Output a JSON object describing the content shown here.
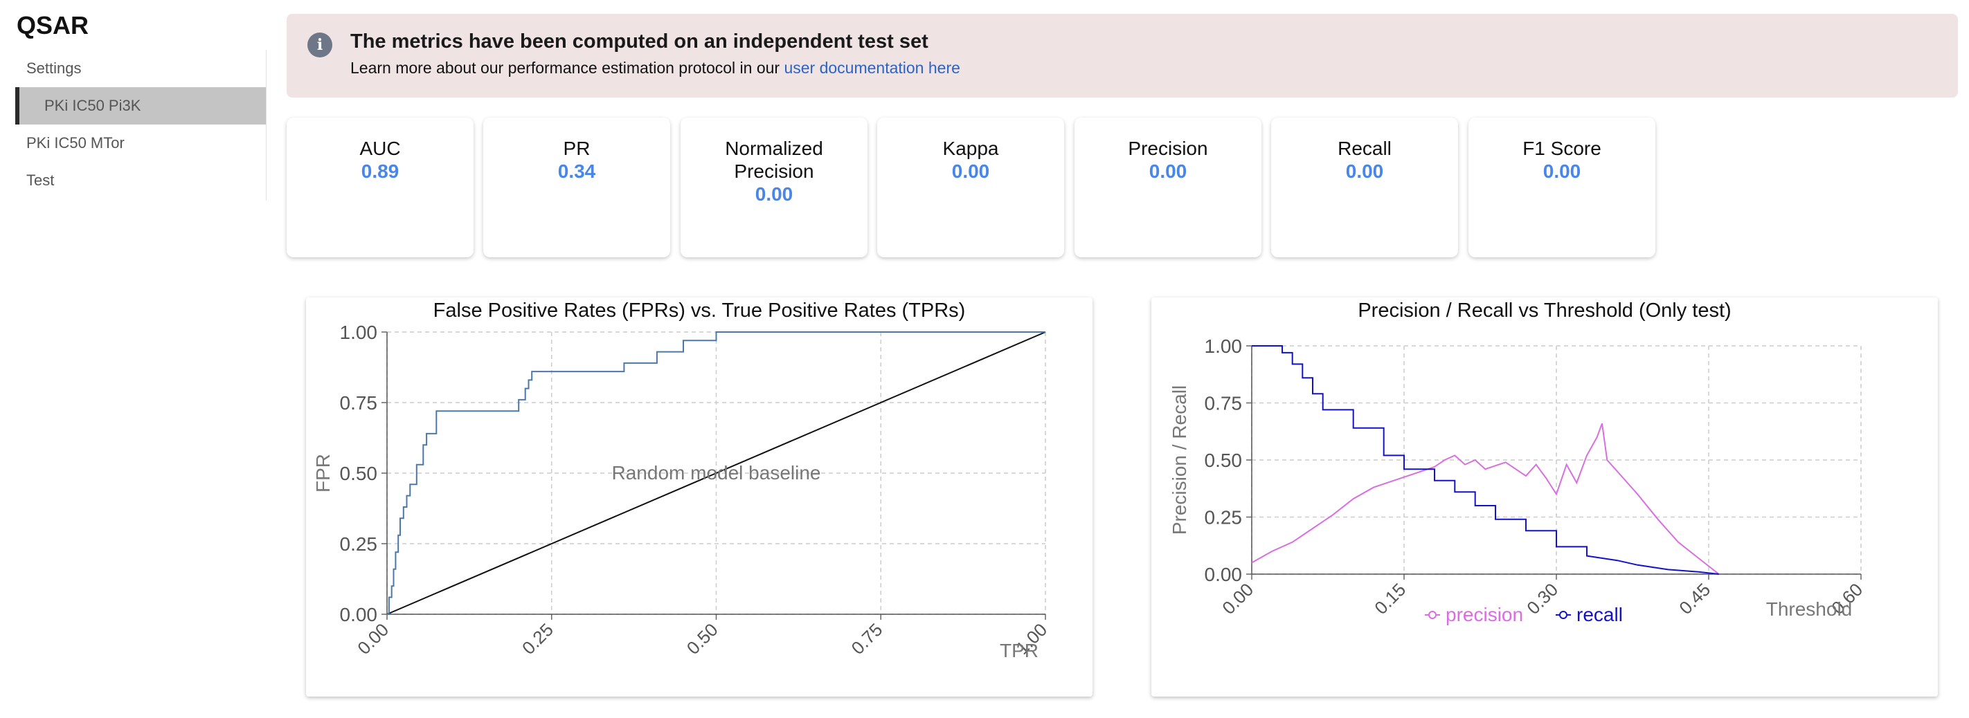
{
  "app": {
    "title": "QSAR"
  },
  "sidebar": {
    "items": [
      {
        "label": "Settings",
        "active": false
      },
      {
        "label": "PKi IC50 Pi3K",
        "active": true
      },
      {
        "label": "PKi IC50 MTor",
        "active": false
      },
      {
        "label": "Test",
        "active": false
      }
    ]
  },
  "banner": {
    "icon": "info-icon",
    "title": "The metrics have been computed on an independent test set",
    "text": "Learn more about our performance estimation protocol in our",
    "link_text": "user documentation here"
  },
  "metrics": [
    {
      "label": "AUC",
      "value": "0.89"
    },
    {
      "label": "PR",
      "value": "0.34"
    },
    {
      "label": "Normalized Precision",
      "value": "0.00"
    },
    {
      "label": "Kappa",
      "value": "0.00"
    },
    {
      "label": "Precision",
      "value": "0.00"
    },
    {
      "label": "Recall",
      "value": "0.00"
    },
    {
      "label": "F1 Score",
      "value": "0.00"
    }
  ],
  "chart_data": [
    {
      "type": "line",
      "title": "False Positive Rates (FPRs) vs. True Positive Rates (TPRs)",
      "xlabel": "TPR",
      "ylabel": "FPR",
      "xlim": [
        0,
        1
      ],
      "ylim": [
        0,
        1
      ],
      "xticks": [
        "0.00",
        "0.25",
        "0.50",
        "0.75",
        "1.00"
      ],
      "yticks": [
        "0.00",
        "0.25",
        "0.50",
        "0.75",
        "1.00"
      ],
      "grid": true,
      "annotation": "Random model baseline",
      "colors": {
        "curve": "#4a78a8",
        "baseline": "#111111"
      },
      "series": [
        {
          "x": [
            0,
            0.003,
            0.003,
            0.007,
            0.007,
            0.01,
            0.01,
            0.013,
            0.013,
            0.017,
            0.017,
            0.02,
            0.02,
            0.025,
            0.025,
            0.03,
            0.03,
            0.035,
            0.035,
            0.045,
            0.045,
            0.055,
            0.055,
            0.06,
            0.06,
            0.075,
            0.075,
            0.2,
            0.2,
            0.21,
            0.21,
            0.215,
            0.215,
            0.22,
            0.22,
            0.36,
            0.36,
            0.41,
            0.41,
            0.45,
            0.45,
            0.5,
            0.5,
            1.0
          ],
          "y": [
            0,
            0,
            0.06,
            0.06,
            0.1,
            0.1,
            0.16,
            0.16,
            0.22,
            0.22,
            0.28,
            0.28,
            0.34,
            0.34,
            0.38,
            0.38,
            0.42,
            0.42,
            0.46,
            0.46,
            0.53,
            0.53,
            0.6,
            0.6,
            0.64,
            0.64,
            0.72,
            0.72,
            0.76,
            0.76,
            0.8,
            0.8,
            0.83,
            0.83,
            0.86,
            0.86,
            0.89,
            0.89,
            0.93,
            0.93,
            0.97,
            0.97,
            1.0,
            1.0
          ]
        },
        {
          "x": [
            0,
            1
          ],
          "y": [
            0,
            1
          ]
        }
      ]
    },
    {
      "type": "line",
      "title": "Precision / Recall vs Threshold (Only test)",
      "xlabel": "Threshold",
      "ylabel": "Precision / Recall",
      "xlim": [
        0,
        0.6
      ],
      "ylim": [
        0,
        1
      ],
      "xticks": [
        "0.00",
        "0.15",
        "0.30",
        "0.45",
        "0.60"
      ],
      "yticks": [
        "0.00",
        "0.25",
        "0.50",
        "0.75",
        "1.00"
      ],
      "grid": true,
      "legend_position": "bottom",
      "series": [
        {
          "name": "precision",
          "color": "#d86ee0",
          "x": [
            0,
            0.02,
            0.04,
            0.06,
            0.08,
            0.1,
            0.12,
            0.14,
            0.16,
            0.18,
            0.19,
            0.2,
            0.21,
            0.22,
            0.23,
            0.25,
            0.27,
            0.28,
            0.29,
            0.3,
            0.31,
            0.32,
            0.33,
            0.34,
            0.345,
            0.35,
            0.36,
            0.38,
            0.4,
            0.42,
            0.44,
            0.46
          ],
          "y": [
            0.05,
            0.1,
            0.14,
            0.2,
            0.26,
            0.33,
            0.38,
            0.41,
            0.44,
            0.47,
            0.5,
            0.52,
            0.48,
            0.5,
            0.46,
            0.49,
            0.43,
            0.48,
            0.42,
            0.35,
            0.48,
            0.4,
            0.52,
            0.6,
            0.66,
            0.5,
            0.45,
            0.35,
            0.24,
            0.14,
            0.07,
            0.0
          ]
        },
        {
          "name": "recall",
          "color": "#1212cc",
          "x": [
            0,
            0.03,
            0.03,
            0.04,
            0.04,
            0.05,
            0.05,
            0.06,
            0.06,
            0.07,
            0.07,
            0.1,
            0.1,
            0.13,
            0.13,
            0.15,
            0.15,
            0.18,
            0.18,
            0.2,
            0.2,
            0.22,
            0.22,
            0.24,
            0.24,
            0.27,
            0.27,
            0.3,
            0.3,
            0.33,
            0.33,
            0.36,
            0.38,
            0.41,
            0.44,
            0.46
          ],
          "y": [
            1.0,
            1.0,
            0.97,
            0.97,
            0.92,
            0.92,
            0.86,
            0.86,
            0.79,
            0.79,
            0.72,
            0.72,
            0.64,
            0.64,
            0.52,
            0.52,
            0.46,
            0.46,
            0.41,
            0.41,
            0.36,
            0.36,
            0.3,
            0.3,
            0.24,
            0.24,
            0.19,
            0.19,
            0.12,
            0.12,
            0.08,
            0.06,
            0.04,
            0.02,
            0.01,
            0.0
          ]
        }
      ]
    }
  ]
}
